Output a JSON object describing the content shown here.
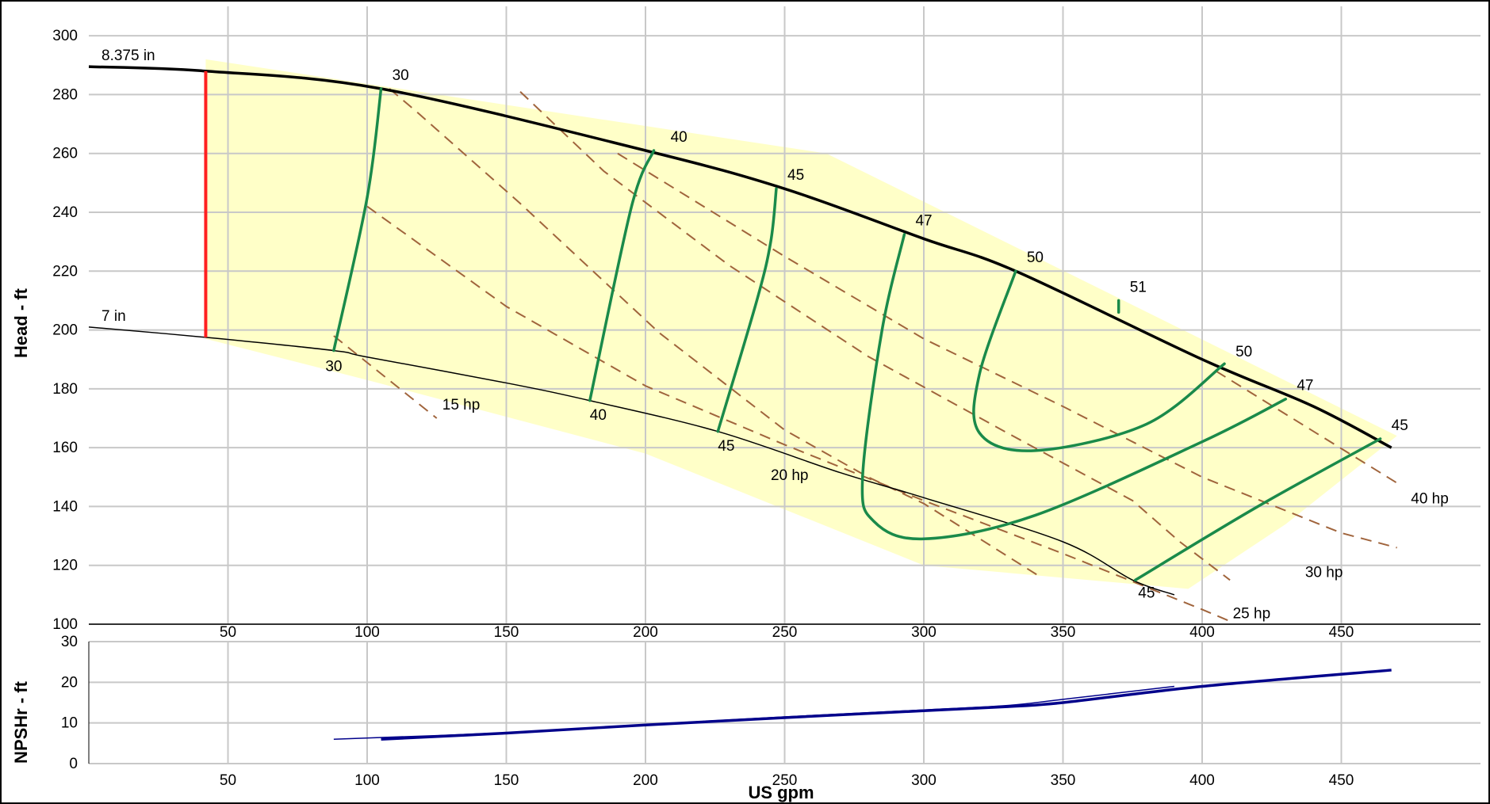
{
  "chart_data": [
    {
      "type": "line",
      "title": "",
      "ylabel": "Head - ft",
      "xlabel": "",
      "xlim": [
        0,
        500
      ],
      "ylim": [
        100,
        310
      ],
      "x_ticks": [
        "50",
        "100",
        "150",
        "200",
        "250",
        "300",
        "350",
        "400",
        "450"
      ],
      "y_ticks": [
        "100",
        "120",
        "140",
        "160",
        "180",
        "200",
        "220",
        "240",
        "260",
        "280",
        "300"
      ],
      "grid": true,
      "colors": {
        "operating_region": "#ffffc8",
        "impeller_curve": "#000000",
        "efficiency": "#1a8a4a",
        "power": "#a0643c",
        "min_flow": "#ff2020"
      },
      "operating_region": [
        [
          42,
          292
        ],
        [
          265,
          260
        ],
        [
          470,
          164
        ],
        [
          430,
          134
        ],
        [
          395,
          112
        ],
        [
          300,
          120
        ],
        [
          200,
          158
        ],
        [
          100,
          183
        ],
        [
          42,
          197
        ]
      ],
      "impeller_curves": [
        {
          "label": "8.375 in",
          "points": [
            [
              0,
              289.5
            ],
            [
              42,
              288
            ],
            [
              105,
              282
            ],
            [
              200,
              261
            ],
            [
              250,
              248
            ],
            [
              300,
              231
            ],
            [
              333,
              220
            ],
            [
              400,
              190
            ],
            [
              440,
              174
            ],
            [
              468,
              160
            ]
          ]
        },
        {
          "label": "7 in",
          "points": [
            [
              0,
              201
            ],
            [
              42,
              197.5
            ],
            [
              88,
              193
            ],
            [
              100,
              190.8
            ],
            [
              150,
              182
            ],
            [
              180,
              176
            ],
            [
              226,
              165.5
            ],
            [
              270,
              151.5
            ],
            [
              300,
              143
            ],
            [
              350,
              128
            ],
            [
              375,
              115
            ],
            [
              390,
              110
            ]
          ]
        }
      ],
      "min_flow_line": {
        "x": 42,
        "y_from": 197.5,
        "y_to": 288
      },
      "efficiency_curves": [
        {
          "label": "30",
          "points": [
            [
              105,
              282
            ],
            [
              100,
              245
            ],
            [
              88,
              193
            ]
          ]
        },
        {
          "label": "40",
          "points": [
            [
              203,
              261
            ],
            [
              195,
              242
            ],
            [
              180,
              176
            ]
          ]
        },
        {
          "label": "45",
          "points": [
            [
              247,
              248
            ],
            [
              245,
              230
            ],
            [
              240,
              210
            ],
            [
              226,
              165.5
            ]
          ]
        },
        {
          "label": "47",
          "points": [
            [
              293,
              232.5
            ],
            [
              285,
              200
            ],
            [
              278,
              150
            ],
            [
              282,
              135
            ],
            [
              300,
              129
            ],
            [
              340,
              137
            ],
            [
              400,
              162
            ],
            [
              430,
              176.5
            ]
          ]
        },
        {
          "label": "50",
          "points": [
            [
              333,
              220
            ],
            [
              320,
              185
            ],
            [
              320,
              165
            ],
            [
              340,
              159
            ],
            [
              380,
              168
            ],
            [
              408,
              188.5
            ]
          ]
        },
        {
          "label": "51",
          "points": [
            [
              370,
              210
            ],
            [
              370,
              206
            ]
          ]
        },
        {
          "label": "45",
          "points": [
            [
              376,
              115
            ],
            [
              420,
              140
            ],
            [
              464,
              163
            ]
          ]
        }
      ],
      "efficiency_labels": [
        {
          "text": "30",
          "x": 109,
          "y": 285
        },
        {
          "text": "40",
          "x": 209,
          "y": 264
        },
        {
          "text": "45",
          "x": 251,
          "y": 251
        },
        {
          "text": "47",
          "x": 297,
          "y": 235.5
        },
        {
          "text": "50",
          "x": 337,
          "y": 223
        },
        {
          "text": "51",
          "x": 374,
          "y": 213
        },
        {
          "text": "50",
          "x": 412,
          "y": 191
        },
        {
          "text": "47",
          "x": 434,
          "y": 179.5
        },
        {
          "text": "45",
          "x": 468,
          "y": 166
        },
        {
          "text": "30",
          "x": 85,
          "y": 186
        },
        {
          "text": "40",
          "x": 180,
          "y": 169.5
        },
        {
          "text": "45",
          "x": 226,
          "y": 159
        },
        {
          "text": "45",
          "x": 377,
          "y": 109
        }
      ],
      "power_lines": [
        {
          "label": "15 hp",
          "points": [
            [
              108,
              282
            ],
            [
              118,
              274
            ],
            [
              155,
              243
            ],
            [
              205,
              199
            ],
            [
              250,
              166
            ],
            [
              280,
              150
            ],
            [
              300,
              141
            ],
            [
              342,
              116
            ]
          ],
          "label_x": 127,
          "label_y": 173
        },
        {
          "label": "20 hp",
          "points": [
            [
              155,
              281
            ],
            [
              185,
              254
            ],
            [
              230,
              222
            ],
            [
              280,
              191
            ],
            [
              330,
              165
            ],
            [
              375,
              142
            ],
            [
              392,
              128
            ],
            [
              410,
              115
            ]
          ],
          "label_x": 245,
          "label_y": 149
        },
        {
          "label": "25 hp",
          "points": [
            [
              88,
              198
            ],
            [
              125,
              170
            ]
          ],
          "label_x": 411,
          "label_y": 102
        },
        {
          "label": "30 hp",
          "points": [
            [
              100,
              242
            ],
            [
              150,
              208
            ],
            [
              200,
              181
            ],
            [
              250,
              161
            ],
            [
              300,
              142
            ],
            [
              350,
              124
            ],
            [
              400,
              105
            ],
            [
              410,
              101
            ]
          ],
          "label_x": 437,
          "label_y": 116
        },
        {
          "label": "40 hp",
          "points": [
            [
              190,
              260
            ],
            [
              250,
              225
            ],
            [
              300,
              197
            ],
            [
              350,
              174
            ],
            [
              400,
              150
            ],
            [
              450,
              131
            ],
            [
              470,
              126
            ]
          ],
          "label_x": 475,
          "label_y": 141
        }
      ],
      "extra_power_segment": [
        [
          405,
          186
        ],
        [
          470,
          148
        ]
      ]
    },
    {
      "type": "line",
      "title": "",
      "ylabel": "NPSHr - ft",
      "xlabel": "US gpm",
      "xlim": [
        0,
        500
      ],
      "ylim": [
        0,
        30
      ],
      "x_ticks": [
        "50",
        "100",
        "150",
        "200",
        "250",
        "300",
        "350",
        "400",
        "450"
      ],
      "y_ticks": [
        "0",
        "10",
        "20",
        "30"
      ],
      "grid": true,
      "colors": {
        "npshr": "#00008b"
      },
      "series": [
        {
          "points": [
            [
              105,
              6
            ],
            [
              150,
              7.5
            ],
            [
              200,
              9.5
            ],
            [
              250,
              11.3
            ],
            [
              300,
              13
            ],
            [
              330,
              14
            ],
            [
              350,
              15
            ],
            [
              400,
              19
            ],
            [
              468,
              23
            ]
          ]
        },
        {
          "points": [
            [
              88,
              6
            ],
            [
              150,
              7.6
            ],
            [
              200,
              9.6
            ],
            [
              250,
              11.5
            ],
            [
              300,
              13.2
            ],
            [
              330,
              14.3
            ],
            [
              350,
              15.8
            ],
            [
              390,
              19
            ]
          ]
        }
      ]
    }
  ]
}
